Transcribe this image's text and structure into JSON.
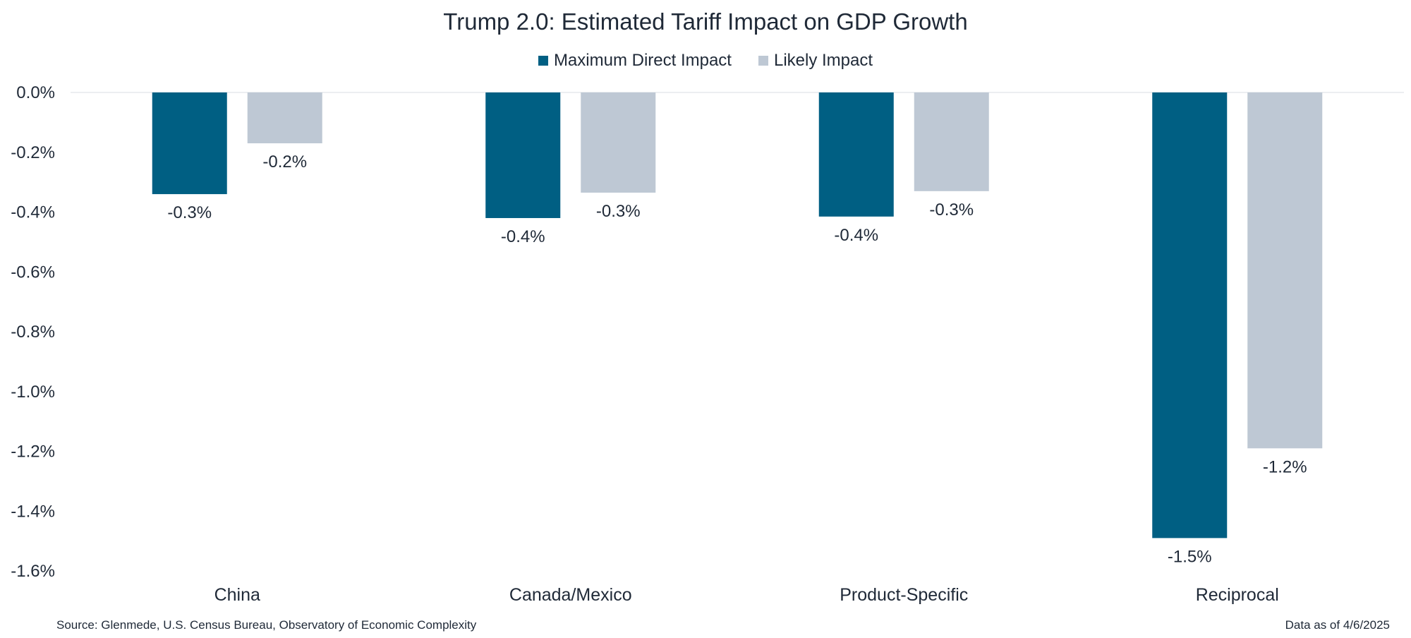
{
  "chart_data": {
    "type": "bar",
    "title": "Trump 2.0: Estimated Tariff Impact on GDP Growth",
    "categories": [
      "China",
      "Canada/Mexico",
      "Product-Specific",
      "Reciprocal"
    ],
    "series": [
      {
        "name": "Maximum Direct Impact",
        "color": "#005f83",
        "values": [
          -0.34,
          -0.42,
          -0.415,
          -1.49
        ],
        "labels": [
          "-0.3%",
          "-0.4%",
          "-0.4%",
          "-1.5%"
        ]
      },
      {
        "name": "Likely Impact",
        "color": "#bec8d4",
        "values": [
          -0.17,
          -0.335,
          -0.33,
          -1.19
        ],
        "labels": [
          "-0.2%",
          "-0.3%",
          "-0.3%",
          "-1.2%"
        ]
      }
    ],
    "ylim": [
      -1.6,
      0
    ],
    "yticks": [
      0,
      -0.2,
      -0.4,
      -0.6,
      -0.8,
      -1.0,
      -1.2,
      -1.4,
      -1.6
    ],
    "ytick_labels": [
      "0.0%",
      "-0.2%",
      "-0.4%",
      "-0.6%",
      "-0.8%",
      "-1.0%",
      "-1.2%",
      "-1.4%",
      "-1.6%"
    ],
    "xlabel": "",
    "ylabel": "",
    "legend_position": "top-center",
    "grid": false
  },
  "footer": {
    "source": "Source: Glenmede, U.S. Census Bureau, Observatory of Economic Complexity",
    "date": "Data as of 4/6/2025"
  }
}
